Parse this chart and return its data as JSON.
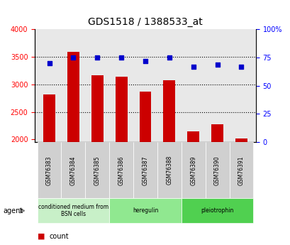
{
  "title": "GDS1518 / 1388533_at",
  "samples": [
    "GSM76383",
    "GSM76384",
    "GSM76385",
    "GSM76386",
    "GSM76387",
    "GSM76388",
    "GSM76389",
    "GSM76390",
    "GSM76391"
  ],
  "counts": [
    2820,
    3590,
    3170,
    3140,
    2870,
    3080,
    2150,
    2280,
    2020
  ],
  "percentiles": [
    70,
    75,
    75,
    75,
    72,
    75,
    67,
    69,
    67
  ],
  "groups": [
    {
      "label": "conditioned medium from\nBSN cells",
      "start": 0,
      "end": 3,
      "color": "#c8f0c8"
    },
    {
      "label": "heregulin",
      "start": 3,
      "end": 6,
      "color": "#90e890"
    },
    {
      "label": "pleiotrophin",
      "start": 6,
      "end": 9,
      "color": "#50d050"
    }
  ],
  "ylim_left": [
    1950,
    4000
  ],
  "ylim_right": [
    0,
    100
  ],
  "yticks_left": [
    2000,
    2500,
    3000,
    3500,
    4000
  ],
  "yticks_right": [
    0,
    25,
    50,
    75,
    100
  ],
  "bar_color": "#cc0000",
  "dot_color": "#0000cc",
  "grid_color": "#000000",
  "bg_color": "#e8e8e8",
  "legend_count_color": "#cc0000",
  "legend_pct_color": "#0000cc"
}
